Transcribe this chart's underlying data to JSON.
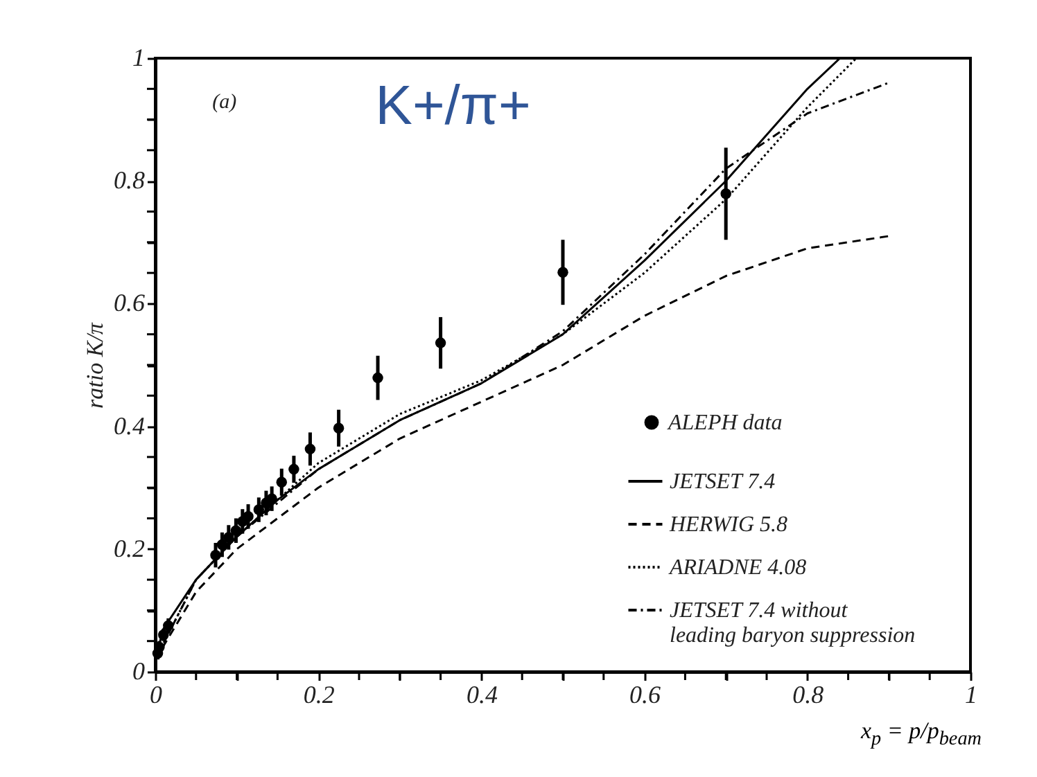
{
  "chart_data": {
    "type": "line",
    "ylabel": "ratio K/π",
    "xlabel": "x$_{p}$ = p/p$_{beam}$",
    "annotations": [
      "(a)",
      "K+/π+"
    ],
    "xlim": [
      0,
      1
    ],
    "ylim": [
      0,
      1
    ],
    "xticks": [
      0,
      {
        "value": 0.05,
        "label": null
      },
      {
        "value": 0.1,
        "label": null
      },
      {
        "value": 0.15,
        "label": null
      },
      0.2,
      {
        "value": 0.25,
        "label": null
      },
      {
        "value": 0.3,
        "label": null
      },
      {
        "value": 0.35,
        "label": null
      },
      0.4,
      {
        "value": 0.45,
        "label": null
      },
      {
        "value": 0.5,
        "label": null
      },
      {
        "value": 0.55,
        "label": null
      },
      0.6,
      {
        "value": 0.65,
        "label": null
      },
      {
        "value": 0.7,
        "label": null
      },
      {
        "value": 0.75,
        "label": null
      },
      0.8,
      {
        "value": 0.85,
        "label": null
      },
      {
        "value": 0.9,
        "label": null
      },
      {
        "value": 0.95,
        "label": null
      },
      1
    ],
    "yticks": [
      0,
      {
        "value": 0.05,
        "label": null
      },
      {
        "value": 0.1,
        "label": null
      },
      {
        "value": 0.15,
        "label": null
      },
      0.2,
      {
        "value": 0.25,
        "label": null
      },
      {
        "value": 0.3,
        "label": null
      },
      {
        "value": 0.35,
        "label": null
      },
      0.4,
      {
        "value": 0.45,
        "label": null
      },
      {
        "value": 0.5,
        "label": null
      },
      {
        "value": 0.55,
        "label": null
      },
      0.6,
      {
        "value": 0.65,
        "label": null
      },
      {
        "value": 0.7,
        "label": null
      },
      {
        "value": 0.75,
        "label": null
      },
      0.8,
      {
        "value": 0.85,
        "label": null
      },
      {
        "value": 0.9,
        "label": null
      },
      {
        "value": 0.95,
        "label": null
      },
      1
    ],
    "legend": "bottom right",
    "grid": false,
    "series": [
      {
        "name": "ALEPH data",
        "type": "scatter",
        "marker": "circle",
        "color": "#000000",
        "x": [
          0.003,
          0.005,
          0.01,
          0.016,
          0.074,
          0.082,
          0.09,
          0.099,
          0.107,
          0.114,
          0.127,
          0.136,
          0.143,
          0.155,
          0.17,
          0.19,
          0.225,
          0.273,
          0.35,
          0.5,
          0.7
        ],
        "values": [
          0.03,
          0.04,
          0.06,
          0.075,
          0.19,
          0.207,
          0.219,
          0.23,
          0.245,
          0.253,
          0.264,
          0.275,
          0.282,
          0.309,
          0.33,
          0.363,
          0.397,
          0.479,
          0.536,
          0.651,
          0.779
        ],
        "errors": [
          0.01,
          0.01,
          0.01,
          0.012,
          0.02,
          0.02,
          0.02,
          0.02,
          0.02,
          0.02,
          0.02,
          0.02,
          0.02,
          0.022,
          0.022,
          0.027,
          0.03,
          0.036,
          0.042,
          0.053,
          0.075
        ]
      },
      {
        "name": "JETSET 7.4",
        "type": "line",
        "line_style": "solid",
        "color": "#000000",
        "x": [
          0,
          0.01,
          0.05,
          0.1,
          0.15,
          0.2,
          0.3,
          0.4,
          0.5,
          0.6,
          0.7,
          0.8,
          0.84
        ],
        "values": [
          0.02,
          0.07,
          0.15,
          0.22,
          0.28,
          0.33,
          0.41,
          0.47,
          0.55,
          0.67,
          0.8,
          0.95,
          1.0
        ]
      },
      {
        "name": "HERWIG 5.8",
        "type": "line",
        "line_style": "dashed",
        "color": "#000000",
        "x": [
          0,
          0.05,
          0.1,
          0.2,
          0.3,
          0.4,
          0.5,
          0.6,
          0.7,
          0.8,
          0.9
        ],
        "values": [
          0.02,
          0.13,
          0.2,
          0.3,
          0.38,
          0.44,
          0.5,
          0.58,
          0.645,
          0.69,
          0.71
        ]
      },
      {
        "name": "ARIADNE 4.08",
        "type": "line",
        "line_style": "dotted",
        "color": "#000000",
        "x": [
          0,
          0.05,
          0.1,
          0.2,
          0.3,
          0.4,
          0.5,
          0.6,
          0.7,
          0.8,
          0.86
        ],
        "values": [
          0.02,
          0.15,
          0.22,
          0.34,
          0.42,
          0.475,
          0.55,
          0.65,
          0.77,
          0.92,
          1.0
        ]
      },
      {
        "name": "JETSET 7.4 without leading baryon suppression",
        "type": "line",
        "line_style": "dashdot",
        "color": "#000000",
        "x": [
          0,
          0.05,
          0.1,
          0.2,
          0.3,
          0.4,
          0.5,
          0.6,
          0.7,
          0.8,
          0.9
        ],
        "values": [
          0.02,
          0.15,
          0.22,
          0.33,
          0.41,
          0.47,
          0.555,
          0.68,
          0.82,
          0.91,
          0.96
        ]
      }
    ]
  }
}
